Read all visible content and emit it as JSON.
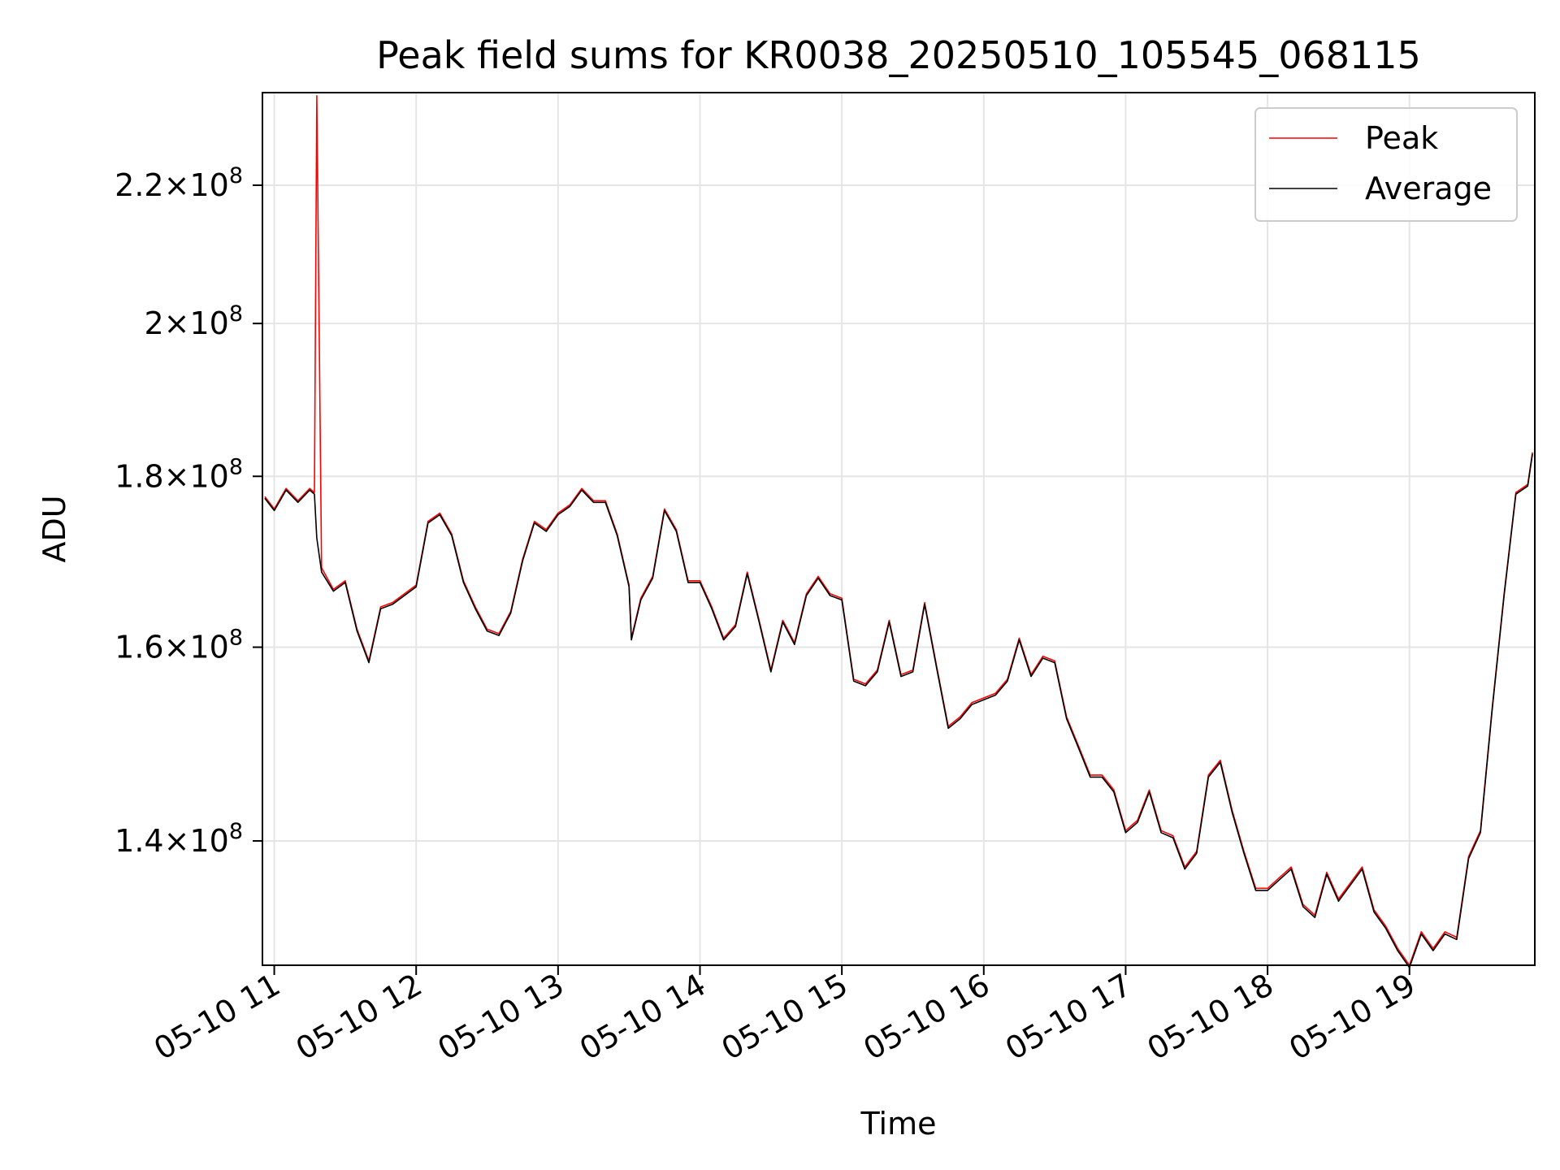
{
  "chart_data": {
    "type": "line",
    "title": "Peak field sums for KR0038_20250510_105545_068115",
    "xlabel": "Time",
    "ylabel": "ADU",
    "y_scale": "log",
    "grid": true,
    "legend_position": "top-right",
    "xlim": [
      "2025-05-10T10:55",
      "2025-05-10T19:53"
    ],
    "ylim": [
      128500000,
      234500000
    ],
    "x_ticks": [
      {
        "time": "2025-05-10T11:00",
        "label": "05-10 11"
      },
      {
        "time": "2025-05-10T12:00",
        "label": "05-10 12"
      },
      {
        "time": "2025-05-10T13:00",
        "label": "05-10 13"
      },
      {
        "time": "2025-05-10T14:00",
        "label": "05-10 14"
      },
      {
        "time": "2025-05-10T15:00",
        "label": "05-10 15"
      },
      {
        "time": "2025-05-10T16:00",
        "label": "05-10 16"
      },
      {
        "time": "2025-05-10T17:00",
        "label": "05-10 17"
      },
      {
        "time": "2025-05-10T18:00",
        "label": "05-10 18"
      },
      {
        "time": "2025-05-10T19:00",
        "label": "05-10 19"
      }
    ],
    "y_ticks": [
      {
        "value": 140000000,
        "mantissa": "1.4",
        "exponent": "8"
      },
      {
        "value": 160000000,
        "mantissa": "1.6",
        "exponent": "8"
      },
      {
        "value": 180000000,
        "mantissa": "1.8",
        "exponent": "8"
      },
      {
        "value": 200000000,
        "mantissa": "2",
        "exponent": "8"
      },
      {
        "value": 220000000,
        "mantissa": "2.2",
        "exponent": "8"
      }
    ],
    "times_sample": [
      "2025-05-10T10:56",
      "2025-05-10T11:00",
      "2025-05-10T11:05",
      "2025-05-10T11:10",
      "2025-05-10T11:15",
      "2025-05-10T11:17",
      "2025-05-10T11:18",
      "2025-05-10T11:20",
      "2025-05-10T11:25",
      "2025-05-10T11:30",
      "2025-05-10T11:35",
      "2025-05-10T11:40",
      "2025-05-10T11:45",
      "2025-05-10T11:50",
      "2025-05-10T12:00",
      "2025-05-10T12:05",
      "2025-05-10T12:10",
      "2025-05-10T12:15",
      "2025-05-10T12:20",
      "2025-05-10T12:25",
      "2025-05-10T12:30",
      "2025-05-10T12:35",
      "2025-05-10T12:40",
      "2025-05-10T12:45",
      "2025-05-10T12:50",
      "2025-05-10T12:55",
      "2025-05-10T13:00",
      "2025-05-10T13:05",
      "2025-05-10T13:10",
      "2025-05-10T13:15",
      "2025-05-10T13:20",
      "2025-05-10T13:25",
      "2025-05-10T13:30",
      "2025-05-10T13:31",
      "2025-05-10T13:35",
      "2025-05-10T13:40",
      "2025-05-10T13:45",
      "2025-05-10T13:50",
      "2025-05-10T13:55",
      "2025-05-10T14:00",
      "2025-05-10T14:05",
      "2025-05-10T14:10",
      "2025-05-10T14:15",
      "2025-05-10T14:20",
      "2025-05-10T14:25",
      "2025-05-10T14:30",
      "2025-05-10T14:35",
      "2025-05-10T14:40",
      "2025-05-10T14:45",
      "2025-05-10T14:50",
      "2025-05-10T14:55",
      "2025-05-10T15:00",
      "2025-05-10T15:05",
      "2025-05-10T15:10",
      "2025-05-10T15:15",
      "2025-05-10T15:20",
      "2025-05-10T15:25",
      "2025-05-10T15:30",
      "2025-05-10T15:35",
      "2025-05-10T15:40",
      "2025-05-10T15:45",
      "2025-05-10T15:50",
      "2025-05-10T15:55",
      "2025-05-10T16:00",
      "2025-05-10T16:05",
      "2025-05-10T16:10",
      "2025-05-10T16:15",
      "2025-05-10T16:20",
      "2025-05-10T16:25",
      "2025-05-10T16:30",
      "2025-05-10T16:35",
      "2025-05-10T16:40",
      "2025-05-10T16:45",
      "2025-05-10T16:50",
      "2025-05-10T16:55",
      "2025-05-10T17:00",
      "2025-05-10T17:05",
      "2025-05-10T17:10",
      "2025-05-10T17:15",
      "2025-05-10T17:20",
      "2025-05-10T17:25",
      "2025-05-10T17:30",
      "2025-05-10T17:35",
      "2025-05-10T17:40",
      "2025-05-10T17:45",
      "2025-05-10T17:50",
      "2025-05-10T17:55",
      "2025-05-10T18:00",
      "2025-05-10T18:05",
      "2025-05-10T18:10",
      "2025-05-10T18:15",
      "2025-05-10T18:20",
      "2025-05-10T18:25",
      "2025-05-10T18:30",
      "2025-05-10T18:35",
      "2025-05-10T18:40",
      "2025-05-10T18:45",
      "2025-05-10T18:50",
      "2025-05-10T18:55",
      "2025-05-10T19:00",
      "2025-05-10T19:05",
      "2025-05-10T19:10",
      "2025-05-10T19:15",
      "2025-05-10T19:20",
      "2025-05-10T19:25",
      "2025-05-10T19:30",
      "2025-05-10T19:35",
      "2025-05-10T19:40",
      "2025-05-10T19:45",
      "2025-05-10T19:50",
      "2025-05-10T19:52"
    ],
    "series": [
      {
        "name": "Peak",
        "color": "#ff0000",
        "values": [
          177500000,
          176000000,
          178500000,
          177000000,
          178500000,
          178000000,
          234000000,
          169000000,
          166500000,
          167500000,
          162000000,
          158500000,
          164500000,
          165000000,
          167000000,
          174500000,
          175500000,
          173000000,
          167500000,
          164500000,
          162000000,
          161500000,
          164000000,
          170000000,
          174500000,
          173500000,
          175500000,
          176500000,
          178500000,
          177000000,
          177000000,
          173000000,
          167000000,
          161000000,
          165500000,
          168000000,
          176000000,
          173500000,
          167500000,
          167500000,
          164500000,
          161000000,
          162500000,
          168500000,
          163000000,
          157500000,
          163000000,
          160500000,
          166000000,
          168000000,
          166000000,
          165500000,
          156500000,
          156000000,
          157500000,
          163000000,
          157000000,
          157500000,
          165000000,
          158000000,
          151500000,
          152500000,
          154000000,
          154500000,
          155000000,
          156500000,
          161000000,
          157000000,
          159000000,
          158500000,
          152500000,
          149500000,
          146500000,
          146500000,
          145000000,
          141000000,
          142000000,
          145000000,
          141000000,
          140500000,
          137500000,
          139000000,
          146500000,
          148000000,
          143000000,
          139000000,
          135500000,
          135500000,
          136500000,
          137500000,
          134000000,
          133000000,
          137000000,
          134500000,
          136000000,
          137500000,
          133500000,
          132000000,
          130000000,
          128500000,
          131500000,
          130000000,
          131500000,
          131000000,
          138500000,
          141000000,
          153500000,
          166000000,
          178000000,
          179000000,
          183000000
        ]
      },
      {
        "name": "Average",
        "color": "#000000",
        "values": [
          177300000,
          175800000,
          178300000,
          176800000,
          178300000,
          177800000,
          172500000,
          168500000,
          166300000,
          167300000,
          161800000,
          158300000,
          164300000,
          164800000,
          166800000,
          174300000,
          175300000,
          172800000,
          167300000,
          164300000,
          161800000,
          161300000,
          163800000,
          169800000,
          174300000,
          173300000,
          175300000,
          176300000,
          178300000,
          176800000,
          176800000,
          172800000,
          166800000,
          160800000,
          165300000,
          167800000,
          175800000,
          173300000,
          167300000,
          167300000,
          164300000,
          160800000,
          162300000,
          168300000,
          162800000,
          157300000,
          162800000,
          160300000,
          165800000,
          167800000,
          165800000,
          165300000,
          156300000,
          155800000,
          157300000,
          162800000,
          156800000,
          157300000,
          164800000,
          157800000,
          151300000,
          152300000,
          153800000,
          154300000,
          154800000,
          156300000,
          160800000,
          156800000,
          158800000,
          158300000,
          152300000,
          149300000,
          146300000,
          146300000,
          144800000,
          140800000,
          141800000,
          144800000,
          140800000,
          140300000,
          137300000,
          138800000,
          146300000,
          147800000,
          142800000,
          138800000,
          135300000,
          135300000,
          136300000,
          137300000,
          133800000,
          132800000,
          136800000,
          134300000,
          135800000,
          137300000,
          133300000,
          131800000,
          129800000,
          128300000,
          131300000,
          129800000,
          131300000,
          130800000,
          138300000,
          140800000,
          153300000,
          165800000,
          177800000,
          178800000,
          182800000
        ]
      }
    ]
  }
}
